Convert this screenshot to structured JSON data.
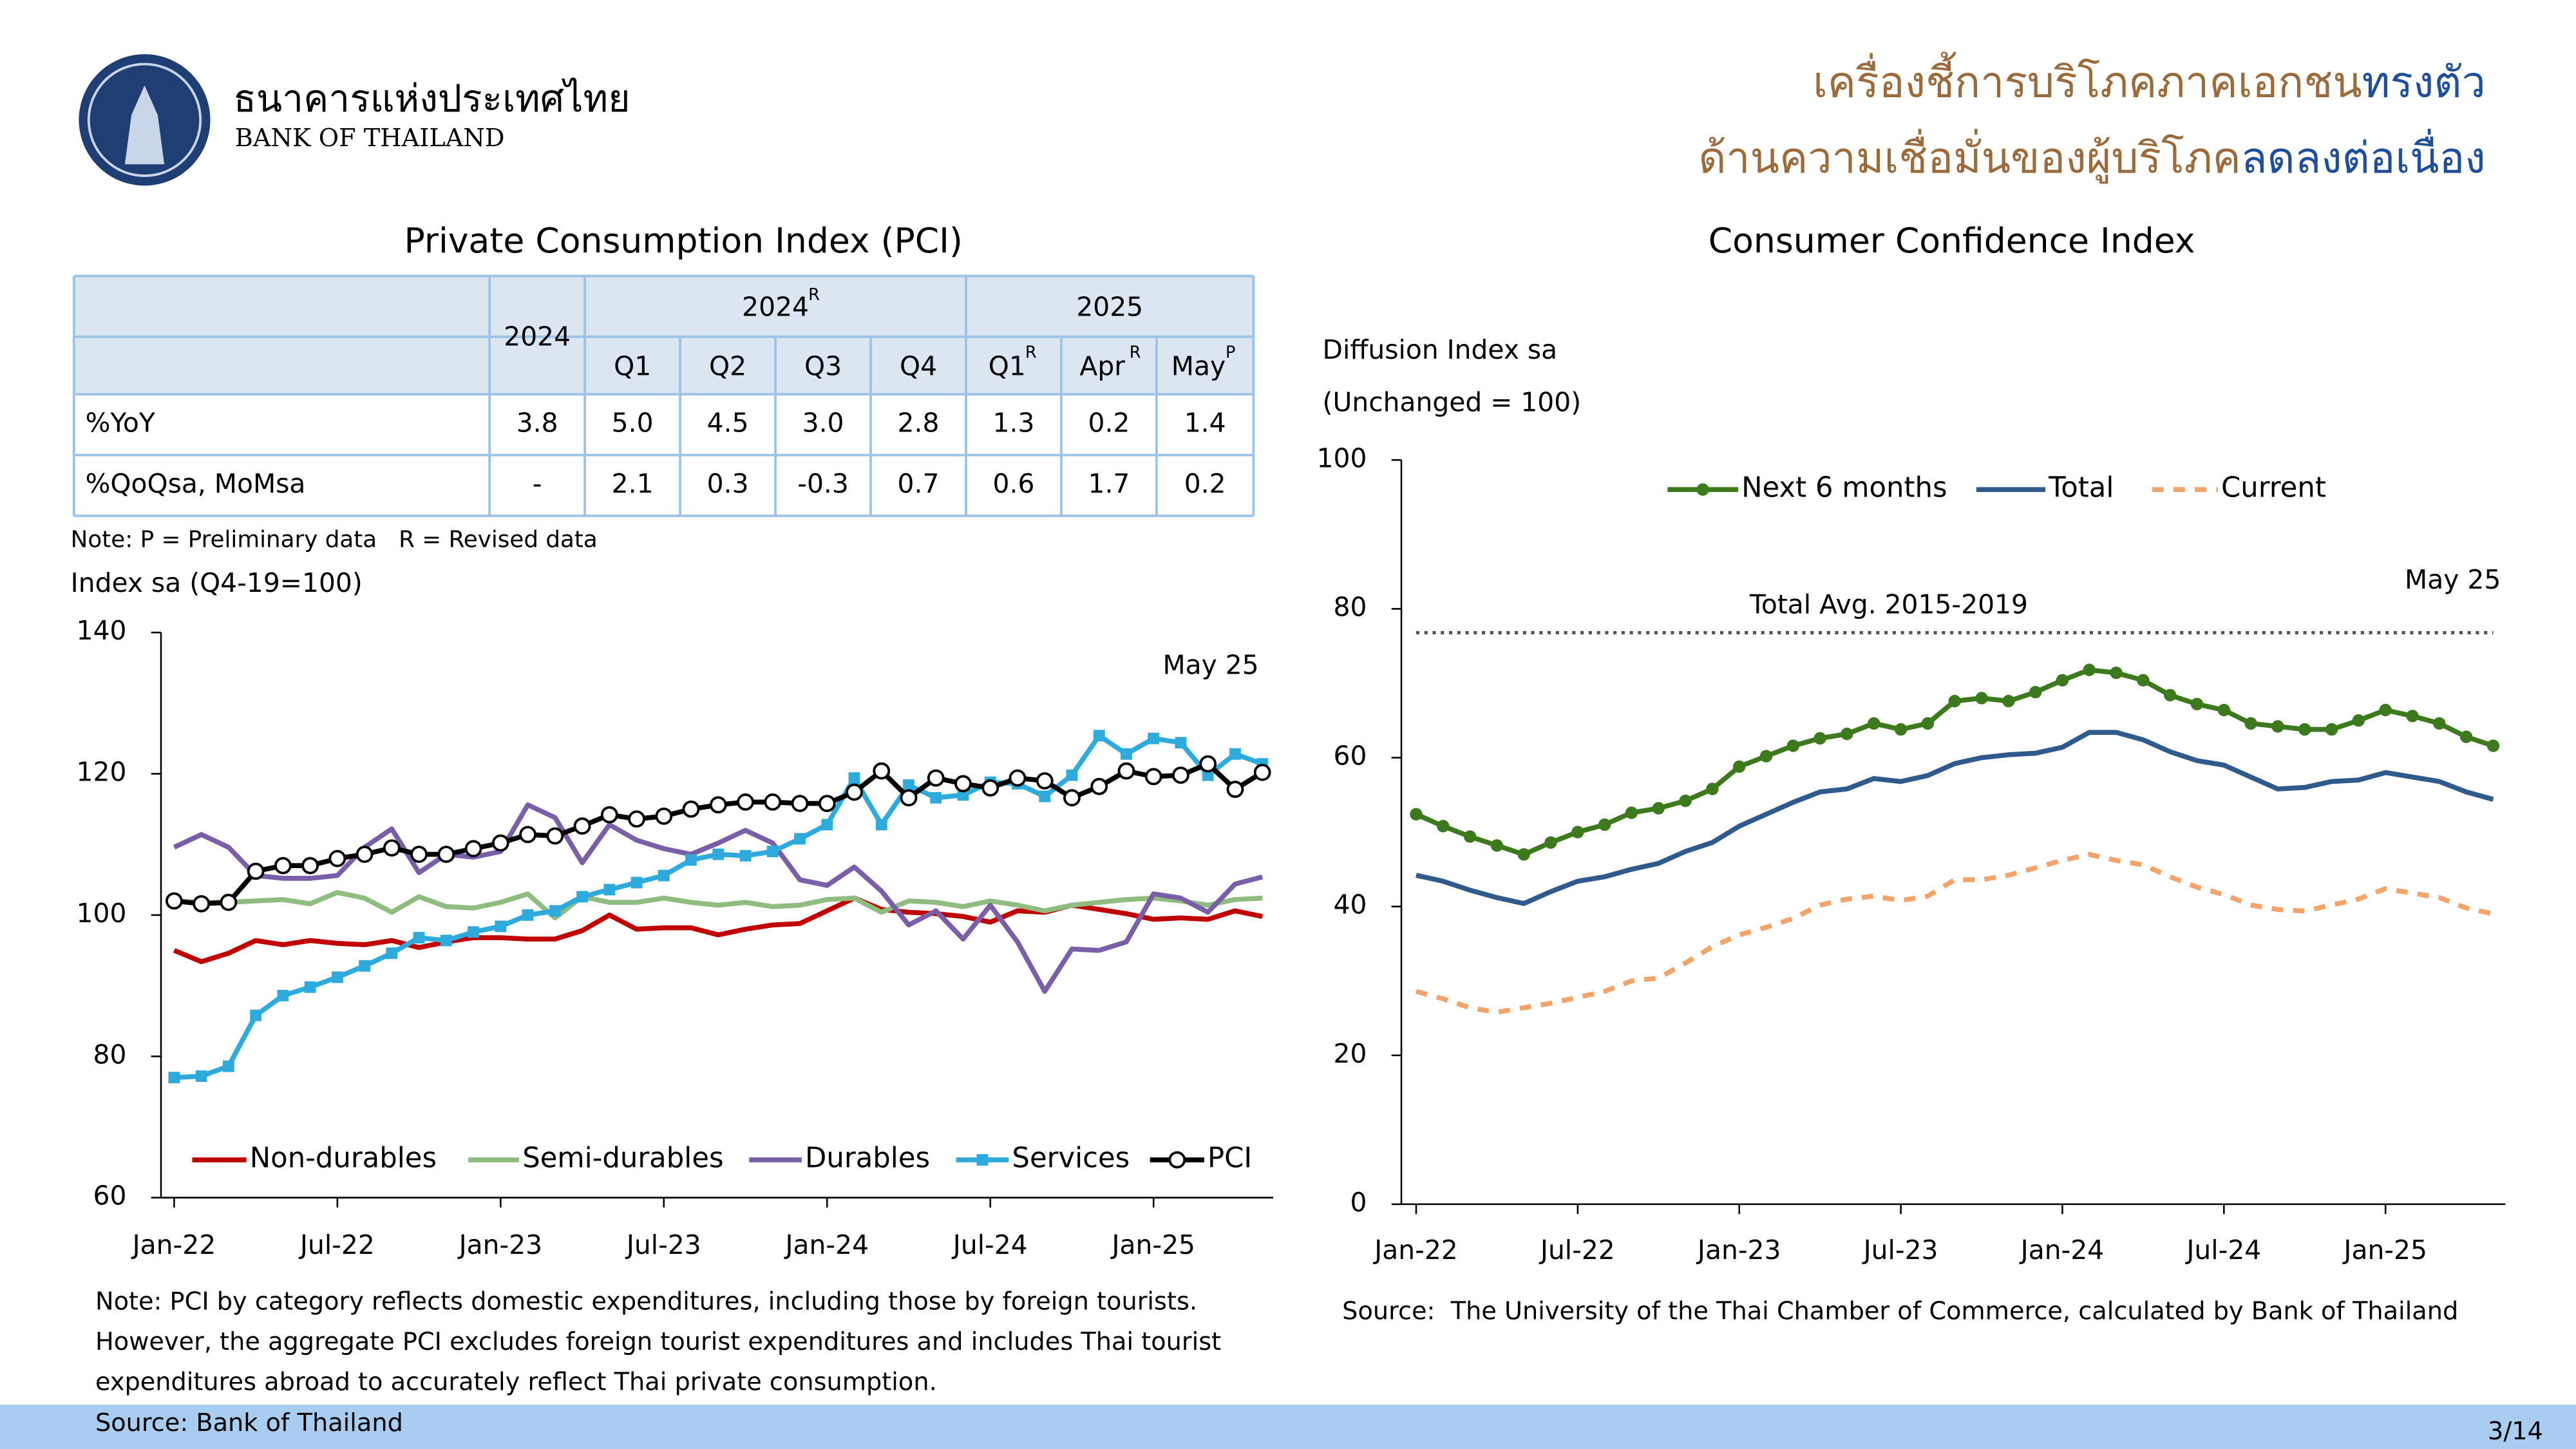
{
  "header": {
    "org_thai": "ธนาคารแห่งประเทศไทย",
    "org_en": "BANK OF THAILAND",
    "title_lines": [
      [
        {
          "text": "เครื่องชี้การบริโภคภาคเอกชน",
          "color": "#9c6b3c"
        },
        {
          "text": "ทรงตัว",
          "color": "#1f4e9c"
        }
      ],
      [
        {
          "text": "ด้านความเชื่อมั่นของผู้บริโภค",
          "color": "#9c6b3c"
        },
        {
          "text": "ลดลงต่อเนื่อง",
          "color": "#1f4e9c"
        }
      ]
    ]
  },
  "table": {
    "title": "Private Consumption Index (PCI)",
    "year_column": "2024",
    "groups": [
      {
        "label": "2024",
        "sup": "R"
      },
      {
        "label": "2025"
      }
    ],
    "columns": [
      {
        "label": "Q1"
      },
      {
        "label": "Q2"
      },
      {
        "label": "Q3"
      },
      {
        "label": "Q4"
      },
      {
        "label": "Q1",
        "sup": "R"
      },
      {
        "label": "Apr",
        "sup": "R"
      },
      {
        "label": "May",
        "sup": "P"
      }
    ],
    "rows": [
      {
        "label": "%YoY",
        "values": [
          "3.8",
          "5.0",
          "4.5",
          "3.0",
          "2.8",
          "1.3",
          "0.2",
          "1.4"
        ]
      },
      {
        "label": "%QoQsa, MoMsa",
        "values": [
          "-",
          "2.1",
          "0.3",
          "-0.3",
          "0.7",
          "0.6",
          "1.7",
          "0.2"
        ]
      }
    ],
    "note": "Note: P = Preliminary data   R = Revised data"
  },
  "chart_data": [
    {
      "type": "line",
      "y_label": [
        "Index sa (Q4-19=100)"
      ],
      "annotation": "May 25",
      "categories": [
        "Jan-22",
        null,
        null,
        null,
        null,
        null,
        "Jul-22",
        null,
        null,
        null,
        null,
        null,
        "Jan-23",
        null,
        null,
        null,
        null,
        null,
        "Jul-23",
        null,
        null,
        null,
        null,
        null,
        "Jan-24",
        null,
        null,
        null,
        null,
        null,
        "Jul-24",
        null,
        null,
        null,
        null,
        null,
        "Jan-25",
        null,
        null,
        null,
        null
      ],
      "ylim": [
        60,
        140
      ],
      "yticks": [
        60,
        80,
        100,
        120,
        140
      ],
      "grid": false,
      "legend": "bottom",
      "series": [
        {
          "name": "Non-durables",
          "color": "#c00000",
          "marker": null,
          "dash": false,
          "values": [
            95,
            93.4,
            94.6,
            96.4,
            95.8,
            96.4,
            96,
            95.8,
            96.4,
            95.4,
            96.2,
            96.8,
            96.8,
            96.6,
            96.6,
            97.8,
            100,
            98,
            98.2,
            98.2,
            97.2,
            98,
            98.6,
            98.8,
            100.6,
            102.4,
            100.8,
            100.4,
            100.2,
            99.8,
            99,
            100.6,
            100.4,
            101.4,
            100.8,
            100.2,
            99.4,
            99.6,
            99.4,
            100.6,
            99.8
          ]
        },
        {
          "name": "Semi-durables",
          "color": "#8fbc7f",
          "marker": null,
          "dash": false,
          "values": [
            102,
            101.8,
            101.8,
            102,
            102.2,
            101.6,
            103.2,
            102.4,
            100.4,
            102.6,
            101.2,
            101,
            101.8,
            103,
            99.6,
            102.6,
            101.8,
            101.8,
            102.4,
            101.8,
            101.4,
            101.8,
            101.2,
            101.4,
            102.2,
            102.4,
            100.4,
            102,
            101.8,
            101.2,
            102,
            101.4,
            100.6,
            101.4,
            101.8,
            102.2,
            102.4,
            102,
            101.4,
            102.2,
            102.4
          ]
        },
        {
          "name": "Durables",
          "color": "#7a5fa8",
          "marker": null,
          "dash": false,
          "values": [
            109.6,
            111.4,
            109.6,
            105.6,
            105.2,
            105.2,
            105.6,
            109.6,
            112.2,
            106,
            108.6,
            108.2,
            109,
            115.6,
            113.8,
            107.4,
            112.8,
            110.6,
            109.4,
            108.6,
            110.2,
            112,
            110.2,
            105,
            104.2,
            106.8,
            103.4,
            98.6,
            100.6,
            96.6,
            101.4,
            96.2,
            89.2,
            95.2,
            95,
            96.2,
            103,
            102.4,
            100.4,
            104.4,
            105.4
          ]
        },
        {
          "name": "Services",
          "color": "#2eaadc",
          "marker": "square",
          "dash": false,
          "values": [
            77,
            77.2,
            78.6,
            85.8,
            88.6,
            89.8,
            91.2,
            92.8,
            94.6,
            96.8,
            96.4,
            97.6,
            98.4,
            100,
            100.6,
            102.6,
            103.6,
            104.6,
            105.6,
            107.8,
            108.6,
            108.4,
            109,
            110.8,
            112.8,
            119.4,
            112.8,
            118.4,
            116.6,
            117,
            118.8,
            118.6,
            116.8,
            119.8,
            125.4,
            122.8,
            125,
            124.4,
            119.8,
            122.8,
            121.4
          ]
        },
        {
          "name": "PCI",
          "color": "#000000",
          "marker": "circle",
          "dash": false,
          "values": [
            102,
            101.6,
            101.8,
            106.2,
            107,
            107,
            108,
            108.6,
            109.5,
            108.6,
            108.6,
            109.4,
            110.2,
            111.4,
            111.2,
            112.6,
            114.2,
            113.6,
            114,
            115,
            115.6,
            116,
            116,
            115.8,
            115.8,
            117.4,
            120.4,
            116.6,
            119.4,
            118.6,
            118,
            119.4,
            119,
            116.6,
            118.2,
            120.4,
            119.6,
            119.8,
            121.4,
            117.8,
            120.2
          ]
        }
      ],
      "notes": [
        "Note: PCI by category reflects domestic expenditures, including those by foreign tourists.",
        "However, the aggregate PCI excludes foreign tourist expenditures and includes Thai tourist",
        "expenditures abroad to accurately reflect Thai private consumption."
      ],
      "source": "Source: Bank of Thailand"
    },
    {
      "type": "line",
      "title": "Consumer Confidence Index",
      "y_label": [
        "Diffusion Index sa",
        "(Unchanged = 100)"
      ],
      "annotation": "May 25",
      "categories": [
        "Jan-22",
        null,
        null,
        null,
        null,
        null,
        "Jul-22",
        null,
        null,
        null,
        null,
        null,
        "Jan-23",
        null,
        null,
        null,
        null,
        null,
        "Jul-23",
        null,
        null,
        null,
        null,
        null,
        "Jan-24",
        null,
        null,
        null,
        null,
        null,
        "Jul-24",
        null,
        null,
        null,
        null,
        null,
        "Jan-25",
        null,
        null,
        null,
        null
      ],
      "ylim": [
        0,
        100
      ],
      "yticks": [
        0,
        20,
        40,
        60,
        80,
        100
      ],
      "grid": false,
      "legend": "top",
      "reference_line": {
        "label": "Total Avg. 2015-2019",
        "value": 76.8,
        "color": "#555555"
      },
      "series": [
        {
          "name": "Next 6 months",
          "color": "#3d7a1e",
          "marker": "dot",
          "dash": false,
          "values": [
            52.4,
            50.8,
            49.4,
            48.2,
            47,
            48.6,
            50,
            51,
            52.6,
            53.2,
            54.2,
            55.8,
            58.8,
            60.2,
            61.6,
            62.6,
            63.2,
            64.6,
            63.8,
            64.6,
            67.6,
            68,
            67.6,
            68.8,
            70.4,
            71.8,
            71.4,
            70.4,
            68.4,
            67.2,
            66.4,
            64.6,
            64.2,
            63.8,
            63.8,
            65,
            66.4,
            65.6,
            64.6,
            62.8,
            61.6
          ]
        },
        {
          "name": "Total",
          "color": "#2f5b8c",
          "marker": null,
          "dash": false,
          "values": [
            44.2,
            43.4,
            42.2,
            41.2,
            40.4,
            42,
            43.4,
            44,
            45,
            45.8,
            47.4,
            48.6,
            50.8,
            52.4,
            54,
            55.4,
            55.8,
            57.2,
            56.8,
            57.6,
            59.2,
            60,
            60.4,
            60.6,
            61.4,
            63.4,
            63.4,
            62.4,
            60.8,
            59.6,
            59,
            57.4,
            55.8,
            56,
            56.8,
            57,
            58,
            57.4,
            56.8,
            55.4,
            54.4
          ]
        },
        {
          "name": "Current",
          "color": "#f4a46a",
          "marker": null,
          "dash": true,
          "values": [
            28.6,
            27.6,
            26.4,
            25.8,
            26.4,
            27,
            27.8,
            28.6,
            30,
            30.4,
            32.4,
            34.6,
            36.2,
            37.2,
            38.4,
            40.2,
            41,
            41.4,
            40.8,
            41.4,
            43.6,
            43.6,
            44.2,
            45.2,
            46.2,
            47,
            46.2,
            45.6,
            44,
            42.6,
            41.6,
            40.2,
            39.6,
            39.4,
            40.2,
            41,
            42.4,
            41.8,
            41.2,
            39.8,
            39
          ]
        }
      ],
      "source": "Source:  The University of the Thai Chamber of Commerce, calculated by Bank of Thailand"
    }
  ],
  "footer": {
    "page": "3/14"
  }
}
